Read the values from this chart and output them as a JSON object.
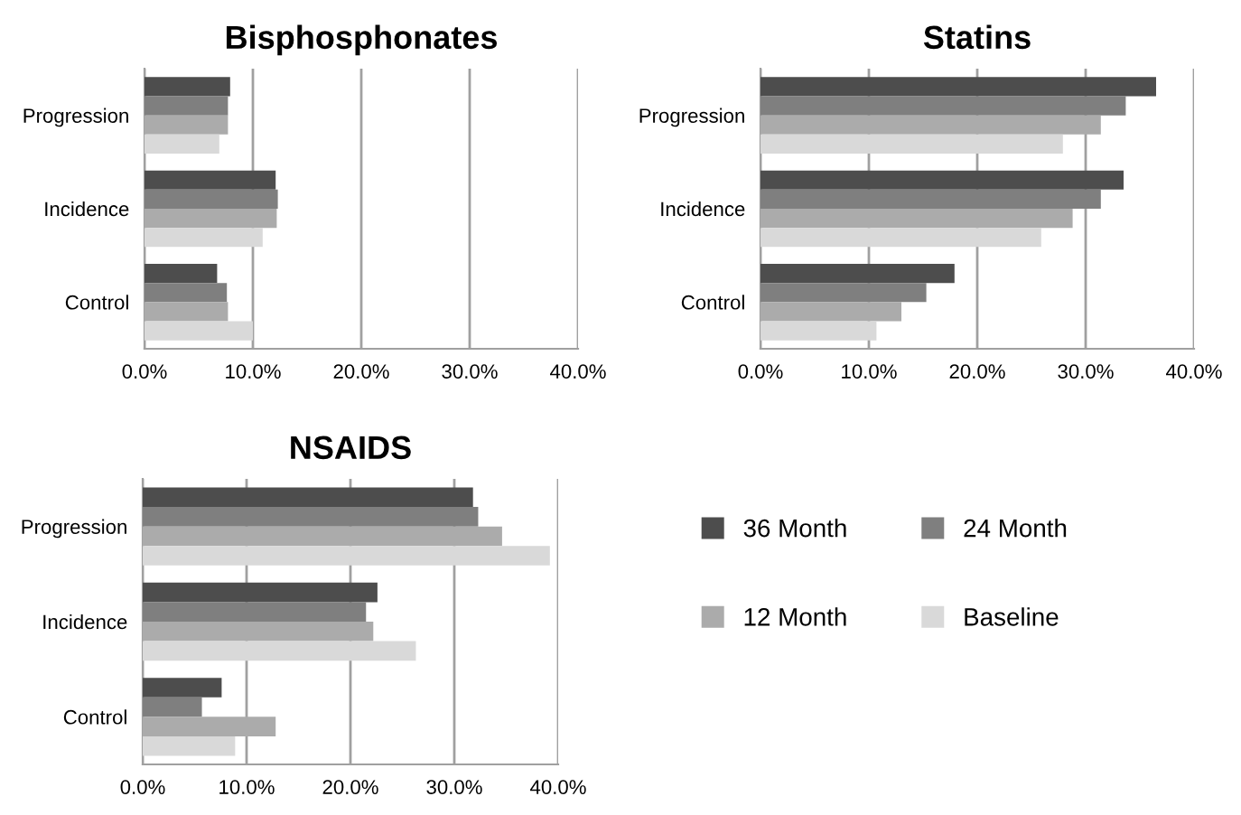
{
  "chart_data": [
    {
      "type": "bar",
      "title": "Bisphosphonates",
      "orientation": "horizontal",
      "categories": [
        "Progression",
        "Incidence",
        "Control"
      ],
      "xlim": [
        0,
        40
      ],
      "xticks": [
        {
          "value": 0,
          "label": "0.0%"
        },
        {
          "value": 10,
          "label": "10.0%"
        },
        {
          "value": 20,
          "label": "20.0%"
        },
        {
          "value": 30,
          "label": "30.0%"
        },
        {
          "value": 40,
          "label": "40.0%"
        }
      ],
      "grid": "x",
      "legend": "bottom right",
      "series": [
        {
          "name": "36 Month",
          "color": "#4d4d4d",
          "values": [
            7.9,
            12.1,
            6.7
          ]
        },
        {
          "name": "24 Month",
          "color": "#7f7f7f",
          "values": [
            7.7,
            12.3,
            7.6
          ]
        },
        {
          "name": "12 Month",
          "color": "#ababab",
          "values": [
            7.7,
            12.2,
            7.7
          ]
        },
        {
          "name": "Baseline",
          "color": "#d9d9d9",
          "values": [
            6.9,
            10.9,
            10.0
          ]
        }
      ]
    },
    {
      "type": "bar",
      "title": "Statins",
      "orientation": "horizontal",
      "categories": [
        "Progression",
        "Incidence",
        "Control"
      ],
      "xlim": [
        0,
        40
      ],
      "xticks": [
        {
          "value": 0,
          "label": "0.0%"
        },
        {
          "value": 10,
          "label": "10.0%"
        },
        {
          "value": 20,
          "label": "20.0%"
        },
        {
          "value": 30,
          "label": "30.0%"
        },
        {
          "value": 40,
          "label": "40.0%"
        }
      ],
      "grid": "x",
      "series": [
        {
          "color": "#4d4d4d",
          "values": [
            36.5,
            33.5,
            17.9
          ]
        },
        {
          "color": "#7f7f7f",
          "values": [
            33.7,
            31.4,
            15.3
          ]
        },
        {
          "color": "#ababab",
          "values": [
            31.4,
            28.8,
            13.0
          ]
        },
        {
          "color": "#d9d9d9",
          "values": [
            27.9,
            25.9,
            10.7
          ]
        }
      ]
    },
    {
      "type": "bar",
      "title": "NSAIDS",
      "orientation": "horizontal",
      "categories": [
        "Progression",
        "Incidence",
        "Control"
      ],
      "xlim": [
        0,
        40
      ],
      "xticks": [
        {
          "value": 0,
          "label": "0.0%"
        },
        {
          "value": 10,
          "label": "10.0%"
        },
        {
          "value": 20,
          "label": "20.0%"
        },
        {
          "value": 30,
          "label": "30.0%"
        },
        {
          "value": 40,
          "label": "40.0%"
        }
      ],
      "grid": "x",
      "series": [
        {
          "color": "#4d4d4d",
          "values": [
            31.8,
            22.6,
            7.6
          ]
        },
        {
          "color": "#7f7f7f",
          "values": [
            32.3,
            21.5,
            5.7
          ]
        },
        {
          "color": "#ababab",
          "values": [
            34.6,
            22.2,
            12.8
          ]
        },
        {
          "color": "#d9d9d9",
          "values": [
            39.2,
            26.3,
            8.9
          ]
        }
      ]
    }
  ]
}
